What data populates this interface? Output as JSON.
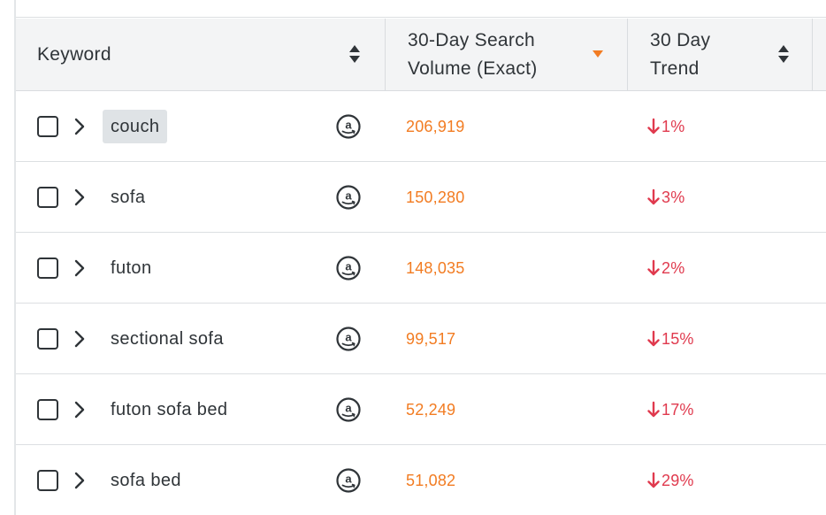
{
  "colors": {
    "accent_orange": "#f27c22",
    "trend_red": "#e03a4e",
    "text_dark": "#2f3438",
    "header_bg": "#f3f4f5",
    "highlight_bg": "#dfe3e6"
  },
  "header": {
    "keyword": "Keyword",
    "volume_line1": "30-Day Search",
    "volume_line2": "Volume (Exact)",
    "trend_line1": "30 Day",
    "trend_line2": "Trend",
    "volume_sort": "descending"
  },
  "rows": [
    {
      "keyword": "couch",
      "volume": "206,919",
      "trend": "1%",
      "direction": "down",
      "highlighted": true,
      "checked": false,
      "marketplace_icon": "amazon-icon"
    },
    {
      "keyword": "sofa",
      "volume": "150,280",
      "trend": "3%",
      "direction": "down",
      "highlighted": false,
      "checked": false,
      "marketplace_icon": "amazon-icon"
    },
    {
      "keyword": "futon",
      "volume": "148,035",
      "trend": "2%",
      "direction": "down",
      "highlighted": false,
      "checked": false,
      "marketplace_icon": "amazon-icon"
    },
    {
      "keyword": "sectional sofa",
      "volume": "99,517",
      "trend": "15%",
      "direction": "down",
      "highlighted": false,
      "checked": false,
      "marketplace_icon": "amazon-icon"
    },
    {
      "keyword": "futon sofa bed",
      "volume": "52,249",
      "trend": "17%",
      "direction": "down",
      "highlighted": false,
      "checked": false,
      "marketplace_icon": "amazon-icon"
    },
    {
      "keyword": "sofa bed",
      "volume": "51,082",
      "trend": "29%",
      "direction": "down",
      "highlighted": false,
      "checked": false,
      "marketplace_icon": "amazon-icon"
    }
  ]
}
